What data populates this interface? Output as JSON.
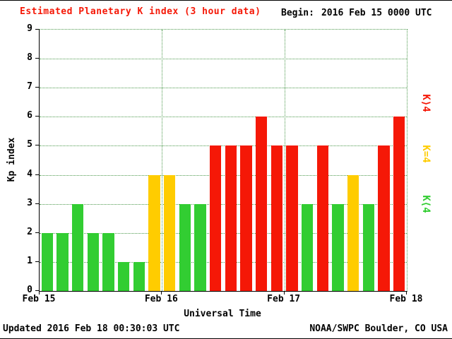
{
  "chart_data": {
    "type": "bar",
    "title": "Estimated Planetary K index (3 hour data)",
    "begin_label": "Begin:",
    "begin_value": "2016 Feb 15 0000 UTC",
    "ylabel": "Kp index",
    "xlabel": "Universal Time",
    "ylim": [
      0,
      9
    ],
    "yticks": [
      0,
      1,
      2,
      3,
      4,
      5,
      6,
      7,
      8,
      9
    ],
    "xticks": [
      "Feb 15",
      "Feb 16",
      "Feb 17",
      "Feb 18"
    ],
    "bars_per_day": 8,
    "values": [
      2,
      2,
      3,
      2,
      2,
      1,
      1,
      4,
      4,
      3,
      3,
      5,
      5,
      5,
      6,
      5,
      5,
      3,
      5,
      3,
      4,
      3,
      5,
      6
    ],
    "colors": {
      "low": "#32cd32",
      "mid": "#ffcc00",
      "high": "#f51807"
    },
    "grid_color": "#4e9a4e",
    "legend": [
      {
        "label": "K⟩4",
        "level": "high"
      },
      {
        "label": "K=4",
        "level": "mid"
      },
      {
        "label": "K⟨4",
        "level": "low"
      }
    ]
  },
  "footer": {
    "updated": "Updated 2016 Feb 18 00:30:03 UTC",
    "source": "NOAA/SWPC Boulder, CO USA"
  }
}
